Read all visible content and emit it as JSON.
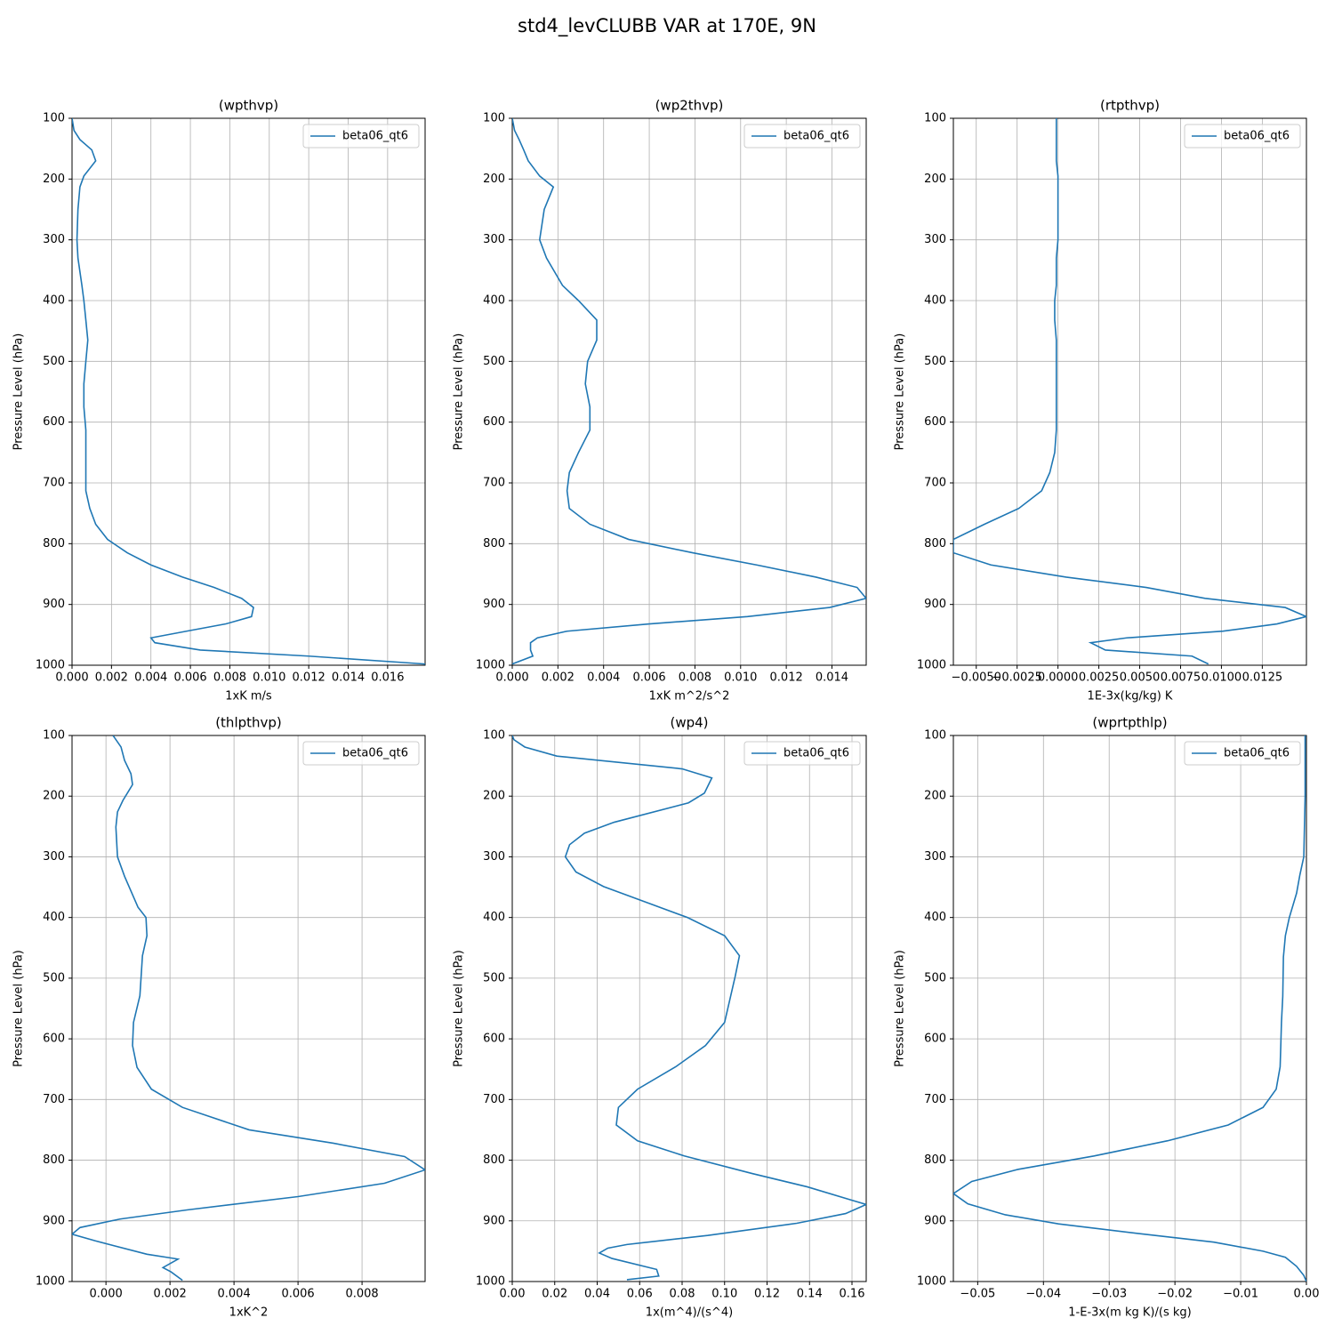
{
  "title": "std4_levCLUBB VAR at 170E, 9N",
  "chart_data": [
    {
      "type": "line",
      "title": "(wpthvp)",
      "xlabel": "1xK m/s",
      "ylabel": "Pressure Level (hPa)",
      "y": [
        100,
        120,
        135,
        152,
        170,
        195,
        213,
        250,
        300,
        330,
        375,
        400,
        432,
        465,
        500,
        537,
        575,
        613,
        650,
        683,
        713,
        742,
        768,
        793,
        815,
        835,
        855,
        872,
        890,
        905,
        920,
        932,
        944,
        955,
        963,
        975,
        985,
        998
      ],
      "series": [
        {
          "name": "beta06_qt6",
          "color": "#1f77b4",
          "values": [
            0,
            0.0001,
            0.0004,
            0.001,
            0.0012,
            0.0006,
            0.0004,
            0.0003,
            0.00025,
            0.0003,
            0.0005,
            0.0006,
            0.0007,
            0.0008,
            0.0007,
            0.0006,
            0.0006,
            0.0007,
            0.0007,
            0.0007,
            0.0007,
            0.0009,
            0.0012,
            0.0018,
            0.0028,
            0.004,
            0.0056,
            0.0072,
            0.0086,
            0.0092,
            0.0091,
            0.0078,
            0.0058,
            0.004,
            0.0042,
            0.0065,
            0.012,
            0.0179
          ]
        }
      ],
      "xlim": [
        0,
        0.0179
      ],
      "xticks": [
        {
          "value": 0,
          "label": "0.000"
        },
        {
          "value": 0.002,
          "label": "0.002"
        },
        {
          "value": 0.004,
          "label": "0.004"
        },
        {
          "value": 0.006,
          "label": "0.006"
        },
        {
          "value": 0.008,
          "label": "0.008"
        },
        {
          "value": 0.01,
          "label": "0.010"
        },
        {
          "value": 0.012,
          "label": "0.012"
        },
        {
          "value": 0.014,
          "label": "0.014"
        },
        {
          "value": 0.016,
          "label": "0.016"
        }
      ],
      "ylim": [
        100,
        1000
      ],
      "y_inverted": true,
      "yticks": [
        100,
        200,
        300,
        400,
        500,
        600,
        700,
        800,
        900,
        1000
      ],
      "grid": true,
      "legend": "upper right"
    },
    {
      "type": "line",
      "title": "(wp2thvp)",
      "xlabel": "1xK m^2/s^2",
      "ylabel": "Pressure Level (hPa)",
      "y": [
        100,
        120,
        135,
        152,
        170,
        195,
        213,
        250,
        300,
        330,
        375,
        400,
        432,
        465,
        500,
        537,
        575,
        613,
        650,
        683,
        713,
        742,
        768,
        793,
        815,
        835,
        855,
        872,
        890,
        905,
        920,
        932,
        944,
        955,
        963,
        975,
        985,
        998
      ],
      "series": [
        {
          "name": "beta06_qt6",
          "color": "#1f77b4",
          "values": [
            0,
            0.0001,
            0.0003,
            0.0005,
            0.0007,
            0.0012,
            0.0018,
            0.0014,
            0.0012,
            0.0015,
            0.0022,
            0.0029,
            0.0037,
            0.0037,
            0.0033,
            0.0032,
            0.0034,
            0.0034,
            0.0029,
            0.0025,
            0.0024,
            0.0025,
            0.0034,
            0.0051,
            0.0079,
            0.0107,
            0.0133,
            0.0151,
            0.0155,
            0.0139,
            0.0103,
            0.006,
            0.0024,
            0.0011,
            0.0008,
            0.0008,
            0.0009,
            0
          ]
        }
      ],
      "xlim": [
        0,
        0.0155
      ],
      "xticks": [
        {
          "value": 0,
          "label": "0.000"
        },
        {
          "value": 0.002,
          "label": "0.002"
        },
        {
          "value": 0.004,
          "label": "0.004"
        },
        {
          "value": 0.006,
          "label": "0.006"
        },
        {
          "value": 0.008,
          "label": "0.008"
        },
        {
          "value": 0.01,
          "label": "0.010"
        },
        {
          "value": 0.012,
          "label": "0.012"
        },
        {
          "value": 0.014,
          "label": "0.014"
        }
      ],
      "ylim": [
        100,
        1000
      ],
      "y_inverted": true,
      "yticks": [
        100,
        200,
        300,
        400,
        500,
        600,
        700,
        800,
        900,
        1000
      ],
      "grid": true,
      "legend": "upper right"
    },
    {
      "type": "line",
      "title": "(rtpthvp)",
      "xlabel": "1E-3x(kg/kg) K",
      "ylabel": "Pressure Level (hPa)",
      "y": [
        100,
        120,
        135,
        152,
        170,
        195,
        213,
        250,
        300,
        330,
        375,
        400,
        432,
        465,
        500,
        537,
        575,
        613,
        650,
        683,
        713,
        742,
        768,
        793,
        815,
        835,
        855,
        872,
        890,
        905,
        920,
        932,
        944,
        955,
        963,
        975,
        985,
        998
      ],
      "series": [
        {
          "name": "beta06_qt6",
          "color": "#1f77b4",
          "values": [
            -0.0001,
            -0.0001,
            -0.0001,
            -0.0001,
            -0.0001,
            0,
            0,
            0,
            0,
            -0.0001,
            -0.0001,
            -0.0002,
            -0.0002,
            -0.0001,
            -0.0001,
            -0.0001,
            -0.0001,
            -0.0001,
            -0.0002,
            -0.0005,
            -0.001,
            -0.0024,
            -0.0045,
            -0.0064,
            -0.0064,
            -0.0041,
            0.0005,
            0.0054,
            0.009,
            0.0139,
            0.0152,
            0.0134,
            0.0101,
            0.0042,
            0.002,
            0.0029,
            0.0082,
            0.0092
          ]
        }
      ],
      "xlim": [
        -0.0064,
        0.0152
      ],
      "xticks": [
        {
          "value": -0.005,
          "label": "−0.0050"
        },
        {
          "value": -0.0025,
          "label": "−0.0025"
        },
        {
          "value": 0,
          "label": "0.0000"
        },
        {
          "value": 0.0025,
          "label": "0.0025"
        },
        {
          "value": 0.005,
          "label": "0.0050"
        },
        {
          "value": 0.0075,
          "label": "0.0075"
        },
        {
          "value": 0.01,
          "label": "0.0100"
        },
        {
          "value": 0.0125,
          "label": "0.0125"
        }
      ],
      "ylim": [
        100,
        1000
      ],
      "y_inverted": true,
      "yticks": [
        100,
        200,
        300,
        400,
        500,
        600,
        700,
        800,
        900,
        1000
      ],
      "grid": true,
      "legend": "upper right"
    },
    {
      "type": "line",
      "title": "(thlpthvp)",
      "xlabel": "1xK^2",
      "ylabel": "Pressure Level (hPa)",
      "y": [
        100,
        119,
        141,
        163,
        181,
        207,
        226,
        251,
        300,
        332,
        383,
        400,
        430,
        463,
        529,
        573,
        611,
        647,
        683,
        713,
        750,
        772,
        794,
        816,
        838,
        860,
        882,
        897,
        911,
        922,
        933,
        955,
        963,
        977,
        984,
        998
      ],
      "series": [
        {
          "name": "beta06_qt6",
          "color": "#1f77b4",
          "values": [
            0.00022,
            0.00047,
            0.00058,
            0.00078,
            0.00083,
            0.00053,
            0.00036,
            0.00031,
            0.00036,
            0.00058,
            0.001,
            0.00125,
            0.00128,
            0.00114,
            0.00106,
            0.00086,
            0.00083,
            0.00097,
            0.00142,
            0.00239,
            0.00447,
            0.0071,
            0.00933,
            0.00997,
            0.0087,
            0.006,
            0.00253,
            0.00044,
            -0.00081,
            -0.00106,
            -0.00033,
            0.00128,
            0.00225,
            0.00178,
            0.00203,
            0.00239
          ]
        }
      ],
      "xlim": [
        -0.00106,
        0.00997
      ],
      "xticks": [
        {
          "value": 0,
          "label": "0.000"
        },
        {
          "value": 0.002,
          "label": "0.002"
        },
        {
          "value": 0.004,
          "label": "0.004"
        },
        {
          "value": 0.006,
          "label": "0.006"
        },
        {
          "value": 0.008,
          "label": "0.008"
        }
      ],
      "ylim": [
        100,
        1000
      ],
      "y_inverted": true,
      "yticks": [
        100,
        200,
        300,
        400,
        500,
        600,
        700,
        800,
        900,
        1000
      ],
      "grid": true,
      "legend": "upper right"
    },
    {
      "type": "line",
      "title": "(wp4)",
      "xlabel": "1x(m^4)/(s^4)",
      "ylabel": "Pressure Level (hPa)",
      "y": [
        100,
        107,
        119,
        134,
        155,
        170,
        195,
        211,
        243,
        261,
        280,
        300,
        325,
        349,
        400,
        430,
        463,
        497,
        573,
        611,
        646,
        683,
        713,
        742,
        768,
        793,
        822,
        844,
        866,
        873,
        888,
        904,
        924,
        939,
        945,
        953,
        962,
        980,
        991,
        997
      ],
      "series": [
        {
          "name": "beta06_qt6",
          "color": "#1f77b4",
          "values": [
            0,
            0.0008,
            0.0059,
            0.021,
            0.08,
            0.094,
            0.0905,
            0.083,
            0.048,
            0.034,
            0.027,
            0.025,
            0.03,
            0.043,
            0.0825,
            0.1,
            0.107,
            0.105,
            0.1,
            0.091,
            0.077,
            0.059,
            0.05,
            0.049,
            0.059,
            0.081,
            0.113,
            0.139,
            0.16,
            0.1667,
            0.157,
            0.134,
            0.092,
            0.054,
            0.045,
            0.041,
            0.047,
            0.068,
            0.069,
            0.054
          ]
        }
      ],
      "xlim": [
        0,
        0.1667
      ],
      "xticks": [
        {
          "value": 0,
          "label": "0.00"
        },
        {
          "value": 0.02,
          "label": "0.02"
        },
        {
          "value": 0.04,
          "label": "0.04"
        },
        {
          "value": 0.06,
          "label": "0.06"
        },
        {
          "value": 0.08,
          "label": "0.08"
        },
        {
          "value": 0.1,
          "label": "0.10"
        },
        {
          "value": 0.12,
          "label": "0.12"
        },
        {
          "value": 0.14,
          "label": "0.14"
        },
        {
          "value": 0.16,
          "label": "0.16"
        }
      ],
      "ylim": [
        100,
        1000
      ],
      "y_inverted": true,
      "yticks": [
        100,
        200,
        300,
        400,
        500,
        600,
        700,
        800,
        900,
        1000
      ],
      "grid": true,
      "legend": "upper right"
    },
    {
      "type": "line",
      "title": "(wprtpthlp)",
      "xlabel": "1-E-3x(m kg K)/(s kg)",
      "ylabel": "Pressure Level (hPa)",
      "y": [
        100,
        200,
        250,
        300,
        330,
        360,
        400,
        430,
        465,
        530,
        573,
        611,
        646,
        683,
        713,
        742,
        768,
        793,
        815,
        835,
        855,
        872,
        890,
        905,
        921,
        935,
        950,
        960,
        975,
        990,
        1000
      ],
      "series": [
        {
          "name": "beta06_qt6",
          "color": "#1f77b4",
          "values": [
            -0.0002,
            -0.0002,
            -0.0003,
            -0.0004,
            -0.001,
            -0.0015,
            -0.0026,
            -0.0032,
            -0.0035,
            -0.0036,
            -0.0038,
            -0.0039,
            -0.004,
            -0.0046,
            -0.0066,
            -0.0119,
            -0.0211,
            -0.0323,
            -0.0438,
            -0.0509,
            -0.0537,
            -0.0515,
            -0.0458,
            -0.0377,
            -0.0255,
            -0.0141,
            -0.0066,
            -0.0032,
            -0.0015,
            -0.0004,
            0
          ]
        }
      ],
      "xlim": [
        -0.0537,
        0
      ],
      "xticks": [
        {
          "value": -0.05,
          "label": "−0.05"
        },
        {
          "value": -0.04,
          "label": "−0.04"
        },
        {
          "value": -0.03,
          "label": "−0.03"
        },
        {
          "value": -0.02,
          "label": "−0.02"
        },
        {
          "value": -0.01,
          "label": "−0.01"
        },
        {
          "value": 0,
          "label": "0.00"
        }
      ],
      "ylim": [
        100,
        1000
      ],
      "y_inverted": true,
      "yticks": [
        100,
        200,
        300,
        400,
        500,
        600,
        700,
        800,
        900,
        1000
      ],
      "grid": true,
      "legend": "upper right"
    }
  ]
}
